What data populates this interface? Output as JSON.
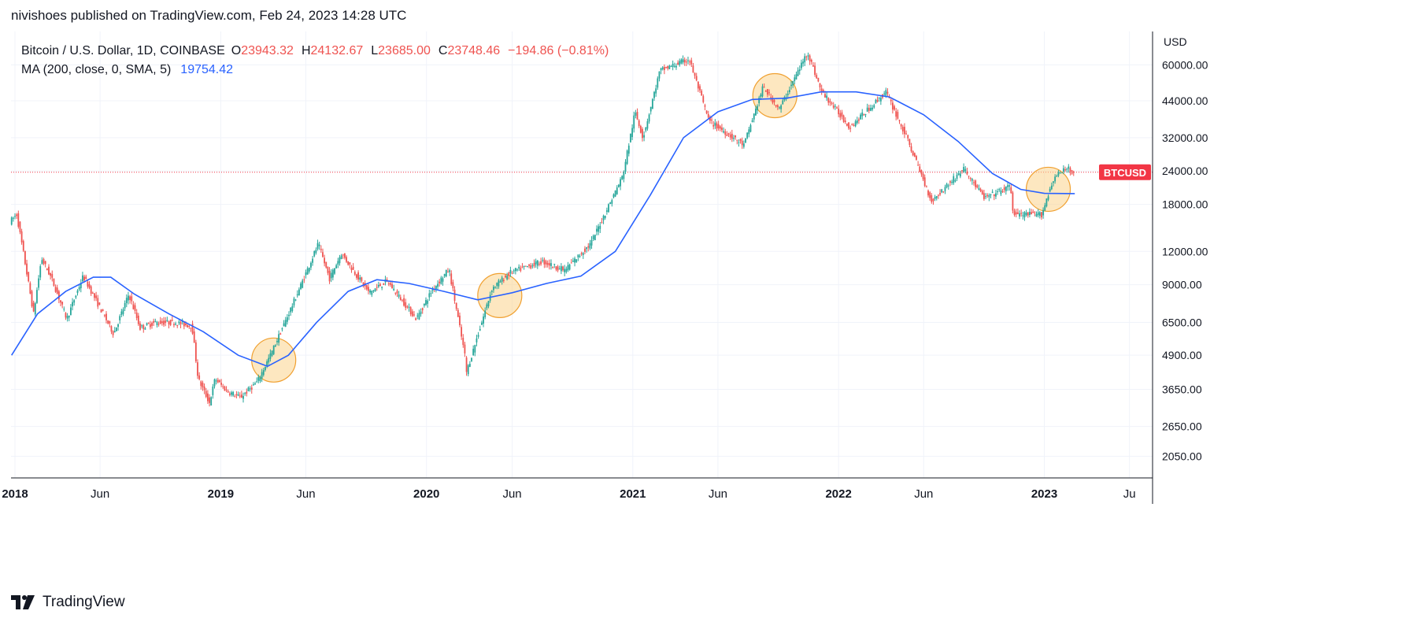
{
  "header": {
    "text": "nivishoes published on TradingView.com, Feb 24, 2023 14:28 UTC"
  },
  "legend": {
    "symbol": "Bitcoin / U.S. Dollar, 1D, COINBASE",
    "open_label": "O",
    "open": "23943.32",
    "high_label": "H",
    "high": "24132.67",
    "low_label": "L",
    "low": "23685.00",
    "close_label": "C",
    "close": "23748.46",
    "change": "−194.86 (−0.81%)",
    "ma_label": "MA (200, close, 0, SMA, 5)",
    "ma_value": "19754.42"
  },
  "price_axis": {
    "currency": "USD"
  },
  "last_price_tag": {
    "label": "BTCUSD",
    "color": "#f23645"
  },
  "footer": {
    "brand": "TradingView"
  },
  "colors": {
    "up": "#26a69a",
    "down": "#ef5350",
    "ma": "#2962ff",
    "highlight_fill": "#fbd38d",
    "highlight_stroke": "#f0a030"
  },
  "chart_data": {
    "type": "candlestick",
    "scale": "log",
    "y_ticks": [
      60000,
      44000,
      32000,
      24000,
      18000,
      12000,
      9000,
      6500,
      4900,
      3650,
      2650,
      2050
    ],
    "y_tick_labels": [
      "60000.00",
      "44000.00",
      "32000.00",
      "24000.00",
      "18000.00",
      "12000.00",
      "9000.00",
      "6500.00",
      "4900.00",
      "3650.00",
      "2650.00",
      "2050.00"
    ],
    "x_range": [
      "2017-12-25",
      "2023-07-12"
    ],
    "x_ticks": [
      {
        "date": "2018-01-01",
        "label": "2018"
      },
      {
        "date": "2018-06-01",
        "label": "Jun"
      },
      {
        "date": "2019-01-01",
        "label": "2019"
      },
      {
        "date": "2019-06-01",
        "label": "Jun"
      },
      {
        "date": "2020-01-01",
        "label": "2020"
      },
      {
        "date": "2020-06-01",
        "label": "Jun"
      },
      {
        "date": "2021-01-01",
        "label": "2021"
      },
      {
        "date": "2021-06-01",
        "label": "Jun"
      },
      {
        "date": "2022-01-01",
        "label": "2022"
      },
      {
        "date": "2022-06-01",
        "label": "Jun"
      },
      {
        "date": "2023-01-01",
        "label": "2023"
      },
      {
        "date": "2023-06-01",
        "label": "Ju"
      }
    ],
    "price_path": [
      [
        "2017-12-26",
        15500
      ],
      [
        "2018-01-07",
        16500
      ],
      [
        "2018-01-20",
        11500
      ],
      [
        "2018-02-06",
        7000
      ],
      [
        "2018-02-20",
        11300
      ],
      [
        "2018-03-10",
        9500
      ],
      [
        "2018-04-06",
        6700
      ],
      [
        "2018-05-05",
        9700
      ],
      [
        "2018-06-28",
        5900
      ],
      [
        "2018-07-25",
        8300
      ],
      [
        "2018-08-14",
        6200
      ],
      [
        "2018-09-10",
        6500
      ],
      [
        "2018-10-15",
        6500
      ],
      [
        "2018-11-14",
        6300
      ],
      [
        "2018-11-25",
        4000
      ],
      [
        "2018-12-15",
        3250
      ],
      [
        "2018-12-25",
        4000
      ],
      [
        "2019-01-15",
        3600
      ],
      [
        "2019-02-08",
        3400
      ],
      [
        "2019-03-10",
        3900
      ],
      [
        "2019-04-02",
        4900
      ],
      [
        "2019-05-14",
        7800
      ],
      [
        "2019-06-26",
        12800
      ],
      [
        "2019-07-16",
        9500
      ],
      [
        "2019-08-06",
        11800
      ],
      [
        "2019-09-24",
        8400
      ],
      [
        "2019-10-26",
        9300
      ],
      [
        "2019-12-17",
        6700
      ],
      [
        "2020-01-14",
        8600
      ],
      [
        "2020-02-13",
        10300
      ],
      [
        "2020-03-12",
        4900
      ],
      [
        "2020-03-13",
        4100
      ],
      [
        "2020-04-29",
        8700
      ],
      [
        "2020-06-01",
        10000
      ],
      [
        "2020-07-27",
        11000
      ],
      [
        "2020-09-05",
        10200
      ],
      [
        "2020-10-21",
        12800
      ],
      [
        "2020-12-17",
        23000
      ],
      [
        "2021-01-08",
        40000
      ],
      [
        "2021-01-22",
        32000
      ],
      [
        "2021-02-21",
        57000
      ],
      [
        "2021-04-14",
        63000
      ],
      [
        "2021-05-19",
        37000
      ],
      [
        "2021-07-20",
        30000
      ],
      [
        "2021-08-23",
        49500
      ],
      [
        "2021-09-21",
        41000
      ],
      [
        "2021-11-10",
        67000
      ],
      [
        "2021-12-04",
        48000
      ],
      [
        "2022-01-24",
        35000
      ],
      [
        "2022-03-29",
        47500
      ],
      [
        "2022-05-09",
        30500
      ],
      [
        "2022-06-18",
        18500
      ],
      [
        "2022-08-14",
        24500
      ],
      [
        "2022-09-20",
        19000
      ],
      [
        "2022-11-05",
        21000
      ],
      [
        "2022-11-10",
        16500
      ],
      [
        "2022-12-30",
        16500
      ],
      [
        "2023-01-21",
        22700
      ],
      [
        "2023-02-16",
        24800
      ],
      [
        "2023-02-24",
        23748.46
      ]
    ],
    "ma_path": [
      [
        "2017-12-26",
        4900
      ],
      [
        "2018-02-10",
        7000
      ],
      [
        "2018-04-01",
        8500
      ],
      [
        "2018-05-20",
        9600
      ],
      [
        "2018-06-20",
        9600
      ],
      [
        "2018-08-01",
        8300
      ],
      [
        "2018-10-01",
        7000
      ],
      [
        "2018-12-01",
        6000
      ],
      [
        "2019-02-01",
        4900
      ],
      [
        "2019-03-25",
        4450
      ],
      [
        "2019-05-01",
        4900
      ],
      [
        "2019-06-20",
        6500
      ],
      [
        "2019-08-15",
        8500
      ],
      [
        "2019-10-05",
        9400
      ],
      [
        "2019-12-01",
        9100
      ],
      [
        "2020-02-01",
        8500
      ],
      [
        "2020-04-01",
        7900
      ],
      [
        "2020-06-01",
        8400
      ],
      [
        "2020-08-01",
        9100
      ],
      [
        "2020-10-01",
        9700
      ],
      [
        "2020-12-01",
        12000
      ],
      [
        "2021-02-01",
        19500
      ],
      [
        "2021-04-01",
        32000
      ],
      [
        "2021-06-01",
        40000
      ],
      [
        "2021-08-01",
        44500
      ],
      [
        "2021-10-01",
        45000
      ],
      [
        "2021-12-01",
        47500
      ],
      [
        "2022-02-01",
        47500
      ],
      [
        "2022-04-01",
        45500
      ],
      [
        "2022-06-01",
        39000
      ],
      [
        "2022-08-01",
        31000
      ],
      [
        "2022-10-01",
        23500
      ],
      [
        "2022-11-20",
        20500
      ],
      [
        "2023-01-01",
        19800
      ],
      [
        "2023-02-24",
        19754.42
      ]
    ],
    "highlights": [
      {
        "date": "2019-04-05",
        "price": 4700
      },
      {
        "date": "2020-05-10",
        "price": 8200
      },
      {
        "date": "2021-09-10",
        "price": 46000
      },
      {
        "date": "2023-01-08",
        "price": 20500
      }
    ],
    "last_price": 23748.46
  }
}
